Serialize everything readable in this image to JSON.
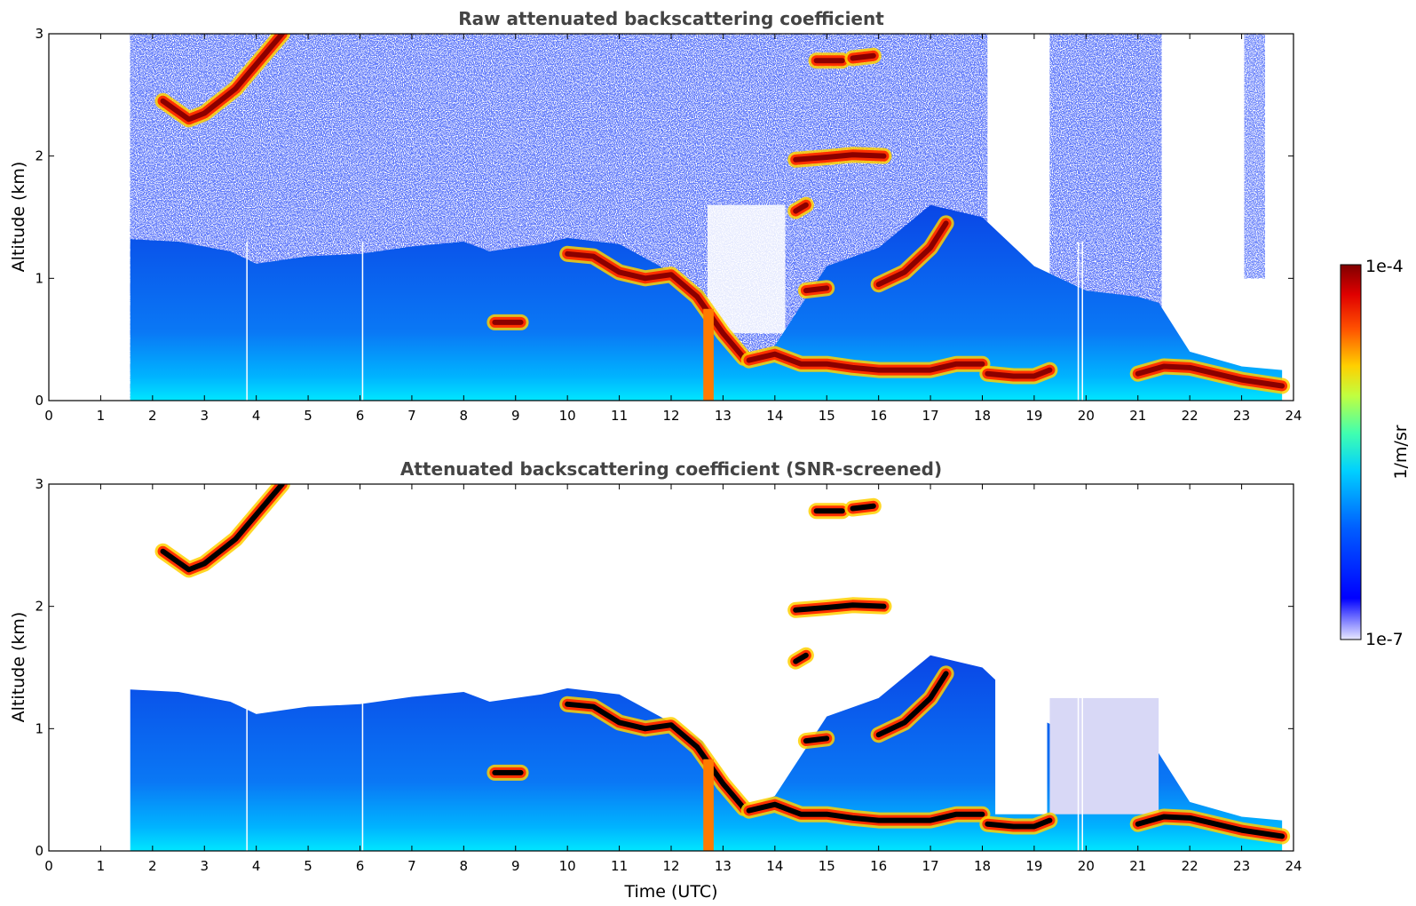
{
  "chart_data": [
    {
      "type": "heatmap",
      "title": "Raw attenuated backscattering coefficient",
      "xlabel": "",
      "ylabel": "Altitude (km)",
      "xlim": [
        0,
        24
      ],
      "ylim": [
        0,
        3
      ],
      "xticks": [
        0,
        1,
        2,
        3,
        4,
        5,
        6,
        7,
        8,
        9,
        10,
        11,
        12,
        13,
        14,
        15,
        16,
        17,
        18,
        19,
        20,
        21,
        22,
        23,
        24
      ],
      "yticks": [
        0,
        1,
        2,
        3
      ],
      "data_start_time": 1.57,
      "data_end_time": 23.78,
      "boundary_layer_top": [
        [
          1.57,
          1.32
        ],
        [
          2.5,
          1.3
        ],
        [
          3.5,
          1.22
        ],
        [
          4.0,
          1.12
        ],
        [
          5.0,
          1.18
        ],
        [
          6.0,
          1.2
        ],
        [
          7.0,
          1.26
        ],
        [
          8.0,
          1.3
        ],
        [
          8.5,
          1.22
        ],
        [
          9.5,
          1.28
        ],
        [
          10.0,
          1.33
        ],
        [
          11.0,
          1.28
        ],
        [
          12.0,
          1.05
        ],
        [
          12.6,
          0.9
        ],
        [
          13.0,
          0.55
        ],
        [
          13.5,
          0.35
        ],
        [
          14.0,
          0.45
        ],
        [
          15.0,
          1.1
        ],
        [
          16.0,
          1.25
        ],
        [
          17.0,
          1.6
        ],
        [
          18.0,
          1.5
        ],
        [
          19.0,
          1.1
        ],
        [
          19.5,
          1.0
        ],
        [
          20.0,
          0.9
        ],
        [
          21.0,
          0.85
        ],
        [
          21.4,
          0.8
        ],
        [
          22.0,
          0.4
        ],
        [
          23.0,
          0.28
        ],
        [
          23.78,
          0.25
        ]
      ],
      "cloud_layers": [
        {
          "times": [
            2.2,
            2.7,
            3.0,
            3.6,
            4.0,
            4.5
          ],
          "altitudes": [
            2.45,
            2.3,
            2.35,
            2.55,
            2.75,
            3.0
          ]
        },
        {
          "times": [
            8.6,
            9.1
          ],
          "altitudes": [
            0.64,
            0.64
          ]
        },
        {
          "times": [
            10.0,
            10.5,
            11.0,
            11.5,
            12.0,
            12.5,
            13.0,
            13.4
          ],
          "altitudes": [
            1.2,
            1.18,
            1.05,
            1.0,
            1.03,
            0.85,
            0.55,
            0.35
          ]
        },
        {
          "times": [
            13.5,
            14.0,
            14.5,
            15.0,
            15.5,
            16.0,
            17.0,
            17.5,
            18.0
          ],
          "altitudes": [
            0.33,
            0.38,
            0.3,
            0.3,
            0.27,
            0.25,
            0.25,
            0.3,
            0.3
          ]
        },
        {
          "times": [
            18.1,
            18.6,
            19.0,
            19.3
          ],
          "altitudes": [
            0.22,
            0.2,
            0.2,
            0.25
          ]
        },
        {
          "times": [
            21.0,
            21.5,
            22.0,
            22.5,
            23.0,
            23.78
          ],
          "altitudes": [
            0.22,
            0.28,
            0.27,
            0.22,
            0.17,
            0.12
          ]
        },
        {
          "times": [
            14.4,
            14.6
          ],
          "altitudes": [
            1.55,
            1.6
          ]
        },
        {
          "times": [
            14.4,
            15.0,
            15.5,
            16.1
          ],
          "altitudes": [
            1.97,
            1.99,
            2.01,
            2.0
          ]
        },
        {
          "times": [
            14.8,
            15.3
          ],
          "altitudes": [
            2.78,
            2.78
          ]
        },
        {
          "times": [
            15.5,
            15.9
          ],
          "altitudes": [
            2.8,
            2.82
          ]
        },
        {
          "times": [
            16.0,
            16.5,
            17.0,
            17.3
          ],
          "altitudes": [
            0.95,
            1.05,
            1.25,
            1.45
          ]
        },
        {
          "times": [
            14.6,
            15.0
          ],
          "altitudes": [
            0.9,
            0.92
          ]
        }
      ]
    },
    {
      "type": "heatmap",
      "title": "Attenuated backscattering coefficient (SNR-screened)",
      "xlabel": "Time (UTC)",
      "ylabel": "Altitude (km)",
      "xlim": [
        0,
        24
      ],
      "ylim": [
        0,
        3
      ],
      "xticks": [
        0,
        1,
        2,
        3,
        4,
        5,
        6,
        7,
        8,
        9,
        10,
        11,
        12,
        13,
        14,
        15,
        16,
        17,
        18,
        19,
        20,
        21,
        22,
        23,
        24
      ],
      "yticks": [
        0,
        1,
        2,
        3
      ],
      "data_start_time": 1.57,
      "data_end_time": 23.78,
      "saturated_color": "#000000"
    }
  ],
  "colorbar": {
    "label": "1/m/sr",
    "max_label": "1e-4",
    "min_label": "1e-7",
    "colormap": "jet",
    "scale": "log",
    "range": [
      1e-07,
      0.0001
    ]
  },
  "colors": {
    "background": "#ffffff",
    "title_text": "#444444",
    "jet_low": "#00007f",
    "jet_high": "#7f0000"
  }
}
